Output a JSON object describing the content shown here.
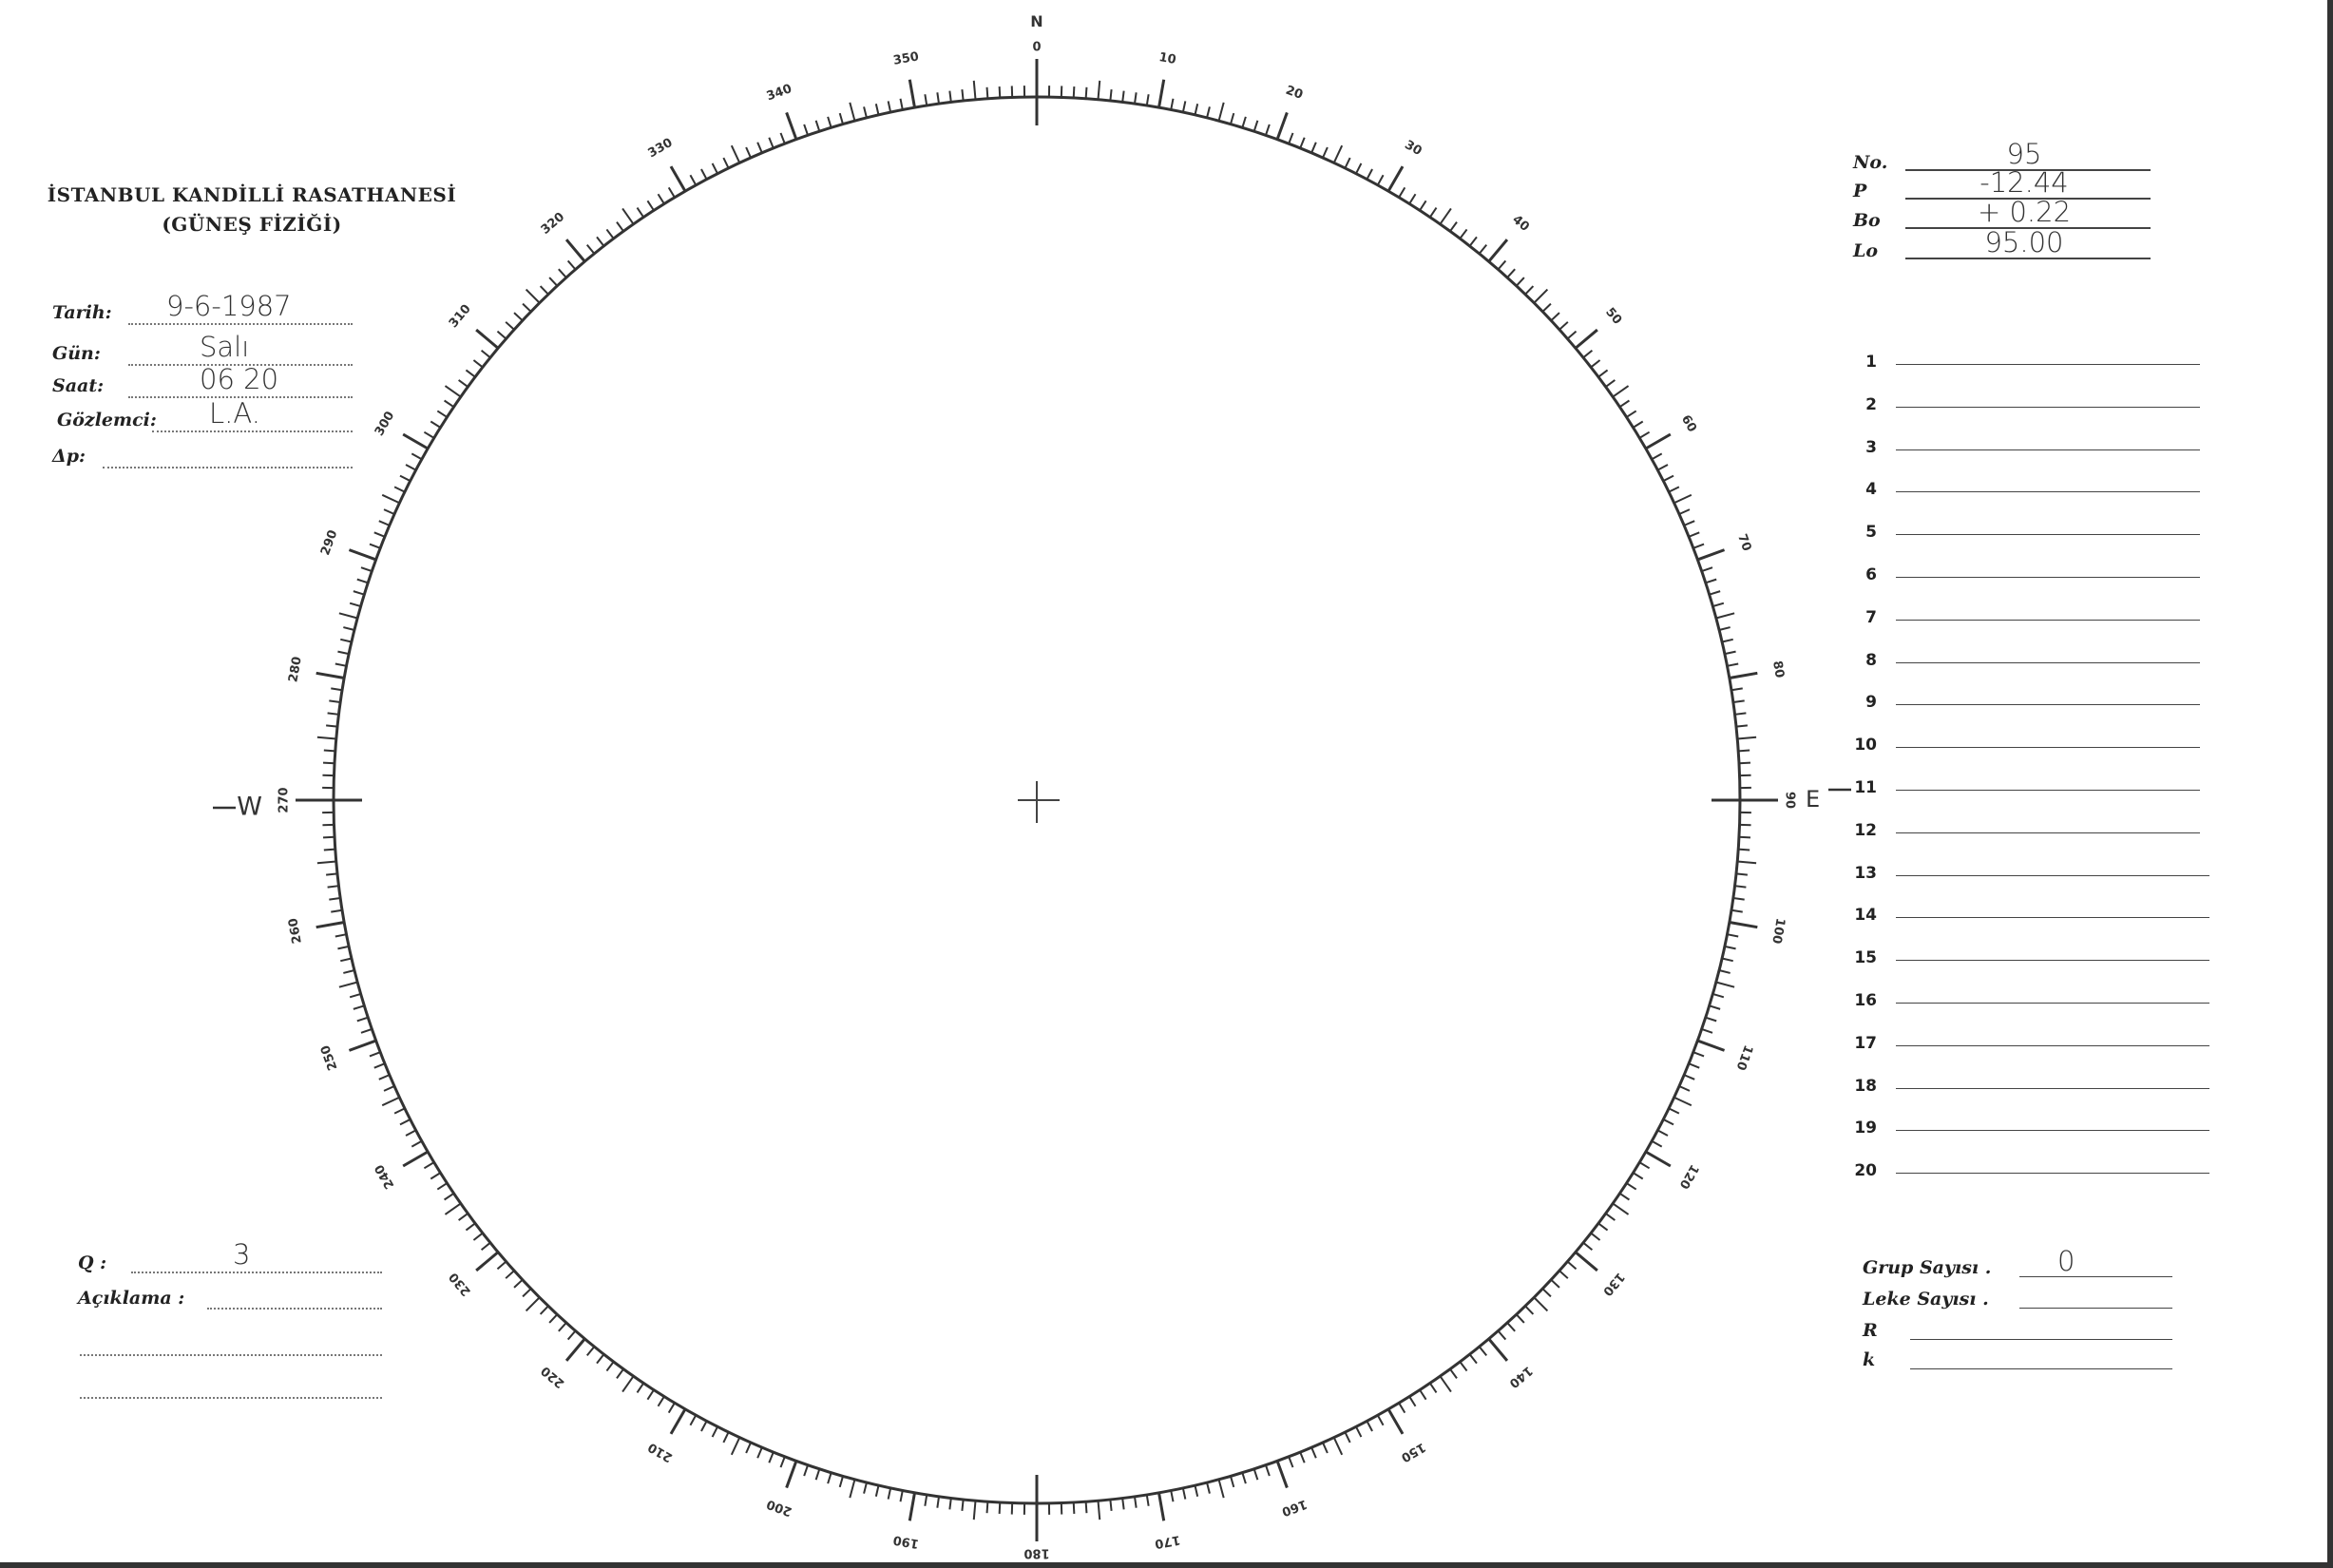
{
  "header": {
    "institution": "İSTANBUL KANDİLLİ RASATHANESİ",
    "department": "(GÜNEŞ FİZİĞİ)"
  },
  "observation": {
    "fields": [
      {
        "label": "Tarih:",
        "value": "9-6-1987"
      },
      {
        "label": "Gün:",
        "value": "Salı"
      },
      {
        "label": "Saat:",
        "value": "06 20"
      },
      {
        "label": "Gözlemci:",
        "value": "L.A."
      },
      {
        "label": "Δp:",
        "value": ""
      }
    ]
  },
  "ephemeris": {
    "fields": [
      {
        "label": "No.",
        "value": "95"
      },
      {
        "label": "P",
        "value": "-12.44"
      },
      {
        "label": "Bo",
        "value": "+ 0.22"
      },
      {
        "label": "Lo",
        "value": "95.00"
      }
    ]
  },
  "numbered_rows": [
    "1",
    "2",
    "3",
    "4",
    "5",
    "6",
    "7",
    "8",
    "9",
    "10",
    "11",
    "12",
    "13",
    "14",
    "15",
    "16",
    "17",
    "18",
    "19",
    "20"
  ],
  "quality": {
    "q_label": "Q :",
    "q_value": "3",
    "note_label": "Açıklama :"
  },
  "counts": {
    "fields": [
      {
        "label": "Grup Sayısı .",
        "value": "0"
      },
      {
        "label": "Leke Sayısı .",
        "value": ""
      },
      {
        "label": "R",
        "value": ""
      },
      {
        "label": "k",
        "value": ""
      }
    ]
  },
  "disk": {
    "north_label": "N",
    "east_label": "E",
    "west_label": "W",
    "degree_labels": [
      "0",
      "10",
      "20",
      "30",
      "40",
      "50",
      "60",
      "70",
      "80",
      "90",
      "100",
      "110",
      "120",
      "130",
      "140",
      "150",
      "160",
      "170",
      "180",
      "190",
      "200",
      "210",
      "220",
      "230",
      "240",
      "250",
      "260",
      "270",
      "280",
      "290",
      "300",
      "310",
      "320",
      "330",
      "340",
      "350"
    ]
  }
}
